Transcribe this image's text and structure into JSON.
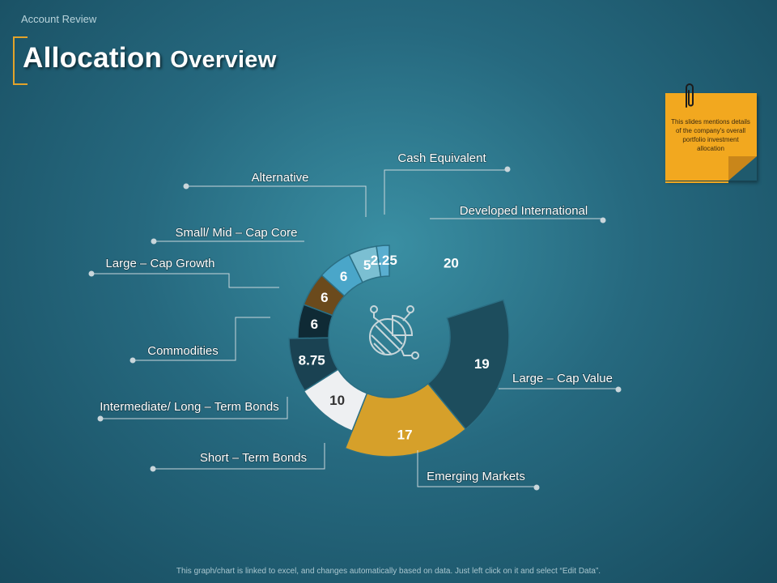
{
  "header": {
    "section": "Account Review",
    "title_word1": "Allocation",
    "title_word2": "Overview"
  },
  "note": {
    "text": "This slides mentions details of the company's overall portfolio investment allocation"
  },
  "footer": "This graph/chart is linked to excel, and changes automatically based on data. Just left click on it and select “Edit Data”.",
  "chart_data": {
    "type": "pie",
    "style": "donut",
    "series": [
      {
        "name": "Developed International",
        "value": 20,
        "label": "20",
        "color": "#2e7f96",
        "text_color": "#ffffff"
      },
      {
        "name": "Large – Cap Value",
        "value": 19,
        "label": "19",
        "color": "#1d4d5d",
        "text_color": "#ffffff"
      },
      {
        "name": "Emerging Markets",
        "value": 17,
        "label": "17",
        "color": "#d6a02a",
        "text_color": "#ffffff"
      },
      {
        "name": "Short – Term Bonds",
        "value": 10,
        "label": "10",
        "color": "#eef0f2",
        "text_color": "#333333"
      },
      {
        "name": "Intermediate/ Long – Term Bonds",
        "value": 8.75,
        "label": "8.75",
        "color": "#1a4252",
        "text_color": "#ffffff"
      },
      {
        "name": "Commodities",
        "value": 6,
        "label": "6",
        "color": "#0f2a35",
        "text_color": "#ffffff"
      },
      {
        "name": "Large – Cap Growth",
        "value": 6,
        "label": "6",
        "color": "#6b4a1c",
        "text_color": "#ffffff"
      },
      {
        "name": "Small/ Mid – Cap Core",
        "value": 6,
        "label": "6",
        "color": "#4aa6c9",
        "text_color": "#ffffff"
      },
      {
        "name": "Alternative",
        "value": 5,
        "label": "5",
        "color": "#7bbfd2",
        "text_color": "#ffffff"
      },
      {
        "name": "Cash Equivalent",
        "value": 2.25,
        "label": "2.25",
        "color": "#5aaed0",
        "text_color": "#ffffff"
      }
    ]
  }
}
